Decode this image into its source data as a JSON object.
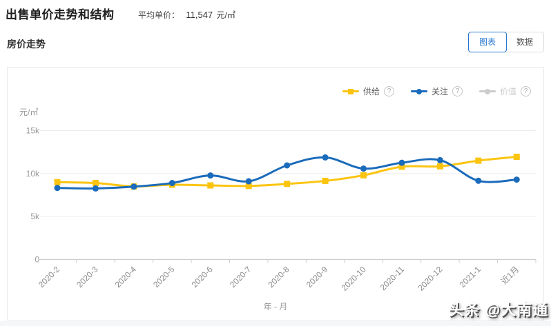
{
  "header": {
    "title": "出售单价走势和结构",
    "average_label": "平均单价：",
    "average_value": "11,547",
    "average_unit": "元/㎡"
  },
  "section": {
    "title": "房价走势",
    "view_toggle": {
      "chart_label": "图表",
      "data_label": "数据",
      "selected": "图表"
    }
  },
  "legend": [
    {
      "label": "供给",
      "color": "#FBC40F",
      "marker": "square",
      "active": true,
      "help_icon": "?"
    },
    {
      "label": "关注",
      "color": "#1A6BBB",
      "marker": "circle",
      "active": true,
      "help_icon": "?"
    },
    {
      "label": "价值",
      "color": "#CCCCCC",
      "marker": "circle",
      "active": false,
      "help_icon": "?"
    }
  ],
  "chart_data": {
    "type": "line",
    "title": "房价走势",
    "y_unit": "元/㎡",
    "xlabel": "年 - 月",
    "ylim": [
      0,
      15000
    ],
    "ytick_labels": [
      "0",
      "5k",
      "10k",
      "15k"
    ],
    "ytick_values": [
      0,
      5000,
      10000,
      15000
    ],
    "grid": true,
    "smooth": true,
    "legend_position": "top-right",
    "categories": [
      "2020-2",
      "2020-3",
      "2020-4",
      "2020-5",
      "2020-6",
      "2020-7",
      "2020-8",
      "2020-9",
      "2020-10",
      "2020-11",
      "2020-12",
      "2021-1",
      "近1月"
    ],
    "series": [
      {
        "name": "供给",
        "color": "#FBC40F",
        "marker": "square",
        "values": [
          9000,
          8900,
          8500,
          8700,
          8620,
          8560,
          8800,
          9150,
          9800,
          10800,
          10850,
          11500,
          11950
        ]
      },
      {
        "name": "关注",
        "color": "#1A6BBB",
        "marker": "circle",
        "values": [
          8330,
          8270,
          8480,
          8900,
          9780,
          9100,
          10950,
          11880,
          10580,
          11260,
          11560,
          9160,
          9300
        ]
      }
    ]
  },
  "watermark": "头条 @大南通"
}
